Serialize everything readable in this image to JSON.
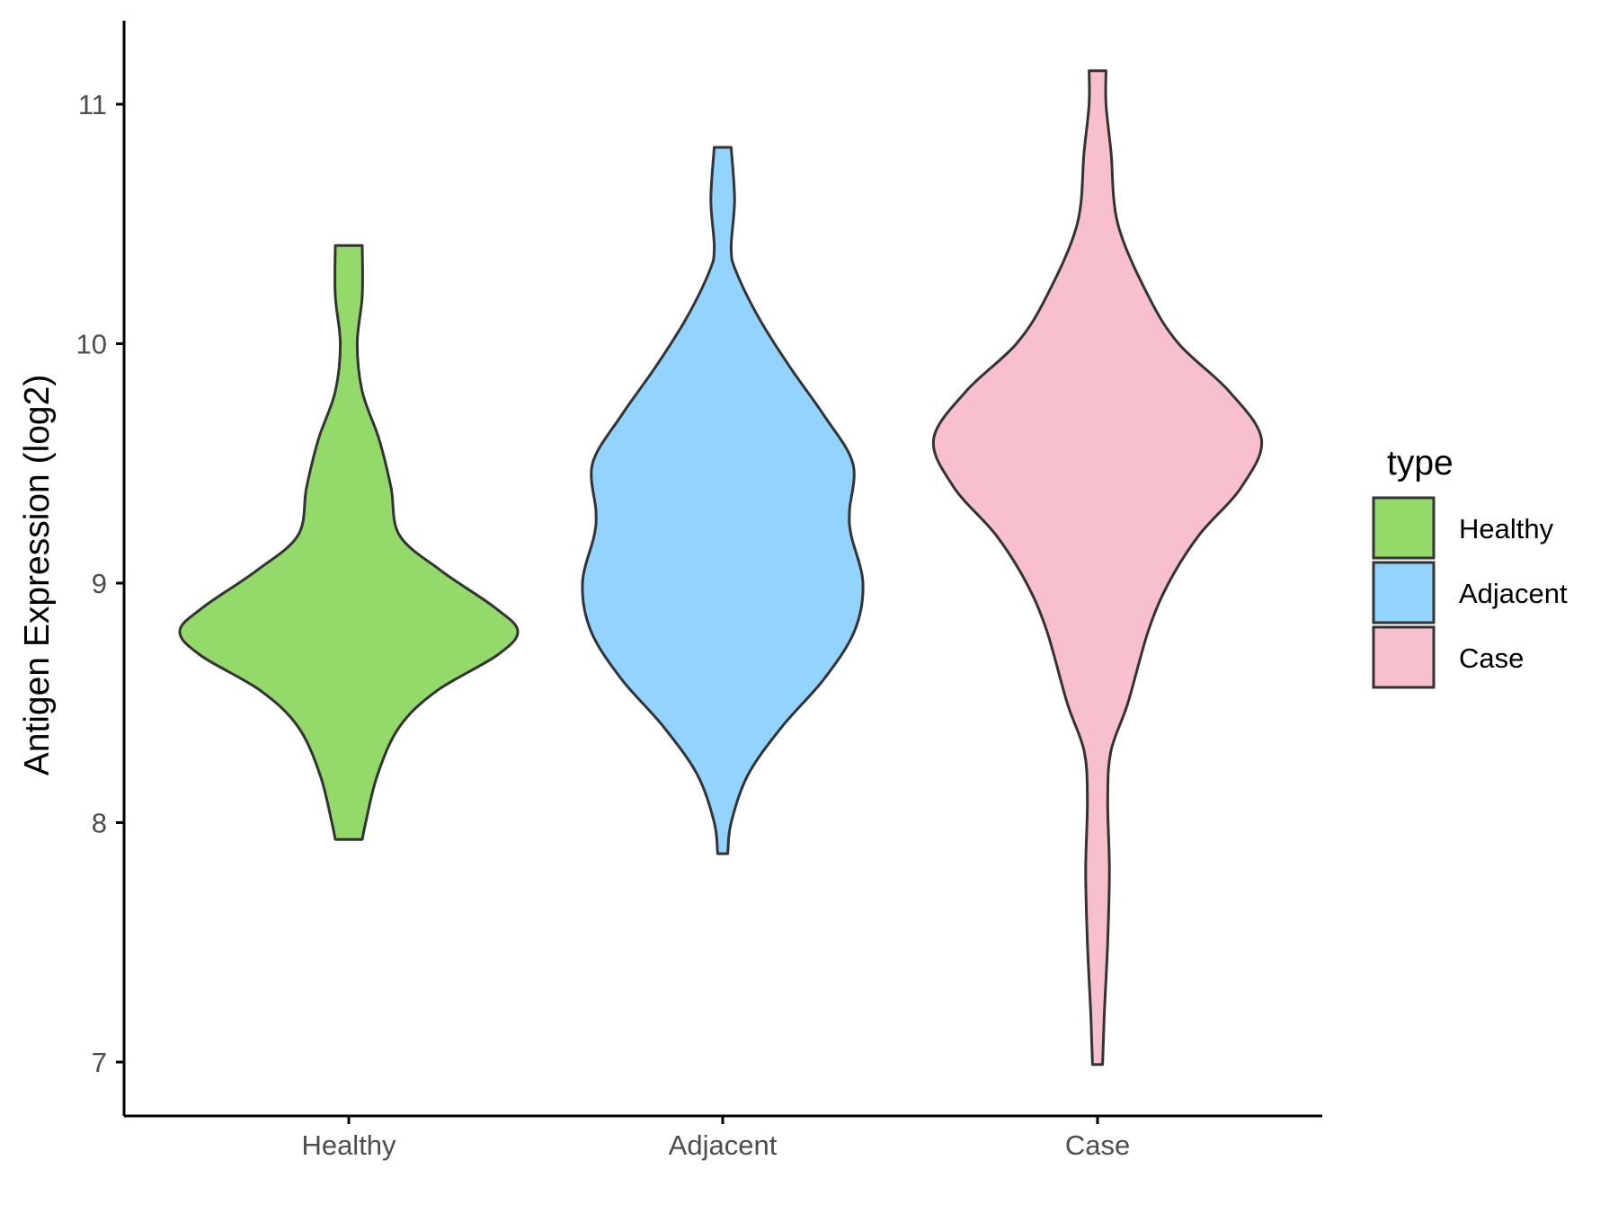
{
  "chart_data": {
    "type": "violin",
    "title": "",
    "xlabel": "",
    "ylabel": "Antigen Expression (log2)",
    "categories": [
      "Healthy",
      "Adjacent",
      "Case"
    ],
    "y_ticks": [
      7,
      8,
      9,
      10,
      11
    ],
    "ylim": [
      6.8,
      11.35
    ],
    "grid": false,
    "legend": {
      "title": "type",
      "placement": "right",
      "entries": [
        "Healthy",
        "Adjacent",
        "Case"
      ]
    },
    "colors": {
      "Healthy": "#93DA6A",
      "Adjacent": "#93D3FF",
      "Case": "#F8C0CC",
      "outline": "#333333",
      "axis": "#000000"
    },
    "series": [
      {
        "category": "Healthy",
        "y_min": 7.93,
        "y_max": 10.41,
        "density_profile": [
          [
            7.93,
            0.08
          ],
          [
            8.0,
            0.1
          ],
          [
            8.2,
            0.17
          ],
          [
            8.4,
            0.3
          ],
          [
            8.55,
            0.52
          ],
          [
            8.7,
            0.88
          ],
          [
            8.8,
            1.0
          ],
          [
            8.9,
            0.86
          ],
          [
            9.05,
            0.55
          ],
          [
            9.2,
            0.3
          ],
          [
            9.4,
            0.25
          ],
          [
            9.6,
            0.18
          ],
          [
            9.8,
            0.08
          ],
          [
            10.0,
            0.05
          ],
          [
            10.2,
            0.08
          ],
          [
            10.41,
            0.08
          ]
        ]
      },
      {
        "category": "Adjacent",
        "y_min": 7.87,
        "y_max": 10.82,
        "density_profile": [
          [
            7.87,
            0.03
          ],
          [
            8.0,
            0.05
          ],
          [
            8.2,
            0.15
          ],
          [
            8.4,
            0.35
          ],
          [
            8.6,
            0.6
          ],
          [
            8.8,
            0.78
          ],
          [
            9.0,
            0.83
          ],
          [
            9.2,
            0.76
          ],
          [
            9.3,
            0.75
          ],
          [
            9.5,
            0.77
          ],
          [
            9.7,
            0.6
          ],
          [
            9.9,
            0.4
          ],
          [
            10.1,
            0.22
          ],
          [
            10.3,
            0.08
          ],
          [
            10.4,
            0.05
          ],
          [
            10.6,
            0.07
          ],
          [
            10.82,
            0.05
          ]
        ]
      },
      {
        "category": "Case",
        "y_min": 6.99,
        "y_max": 11.14,
        "density_profile": [
          [
            6.99,
            0.03
          ],
          [
            7.2,
            0.04
          ],
          [
            7.5,
            0.06
          ],
          [
            7.8,
            0.07
          ],
          [
            8.1,
            0.06
          ],
          [
            8.3,
            0.08
          ],
          [
            8.5,
            0.18
          ],
          [
            8.8,
            0.3
          ],
          [
            9.0,
            0.42
          ],
          [
            9.2,
            0.6
          ],
          [
            9.4,
            0.85
          ],
          [
            9.6,
            0.97
          ],
          [
            9.8,
            0.78
          ],
          [
            10.0,
            0.48
          ],
          [
            10.2,
            0.3
          ],
          [
            10.5,
            0.12
          ],
          [
            10.8,
            0.08
          ],
          [
            11.0,
            0.05
          ],
          [
            11.14,
            0.05
          ]
        ]
      }
    ]
  }
}
